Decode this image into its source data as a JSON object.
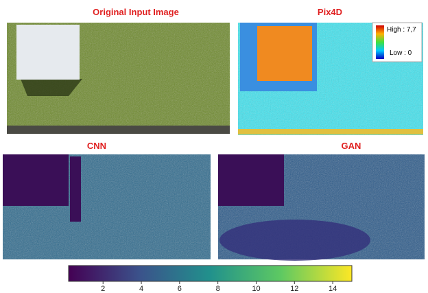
{
  "panels": [
    {
      "title": "Original Input Image"
    },
    {
      "title": "Pix4D",
      "legend": {
        "high": "High : 7,7",
        "low": "Low : 0"
      }
    },
    {
      "title": "CNN"
    },
    {
      "title": "GAN"
    }
  ],
  "colorbar": {
    "lim": [
      0.2,
      15
    ],
    "ticks": [
      2,
      4,
      6,
      8,
      10,
      12,
      14
    ]
  }
}
